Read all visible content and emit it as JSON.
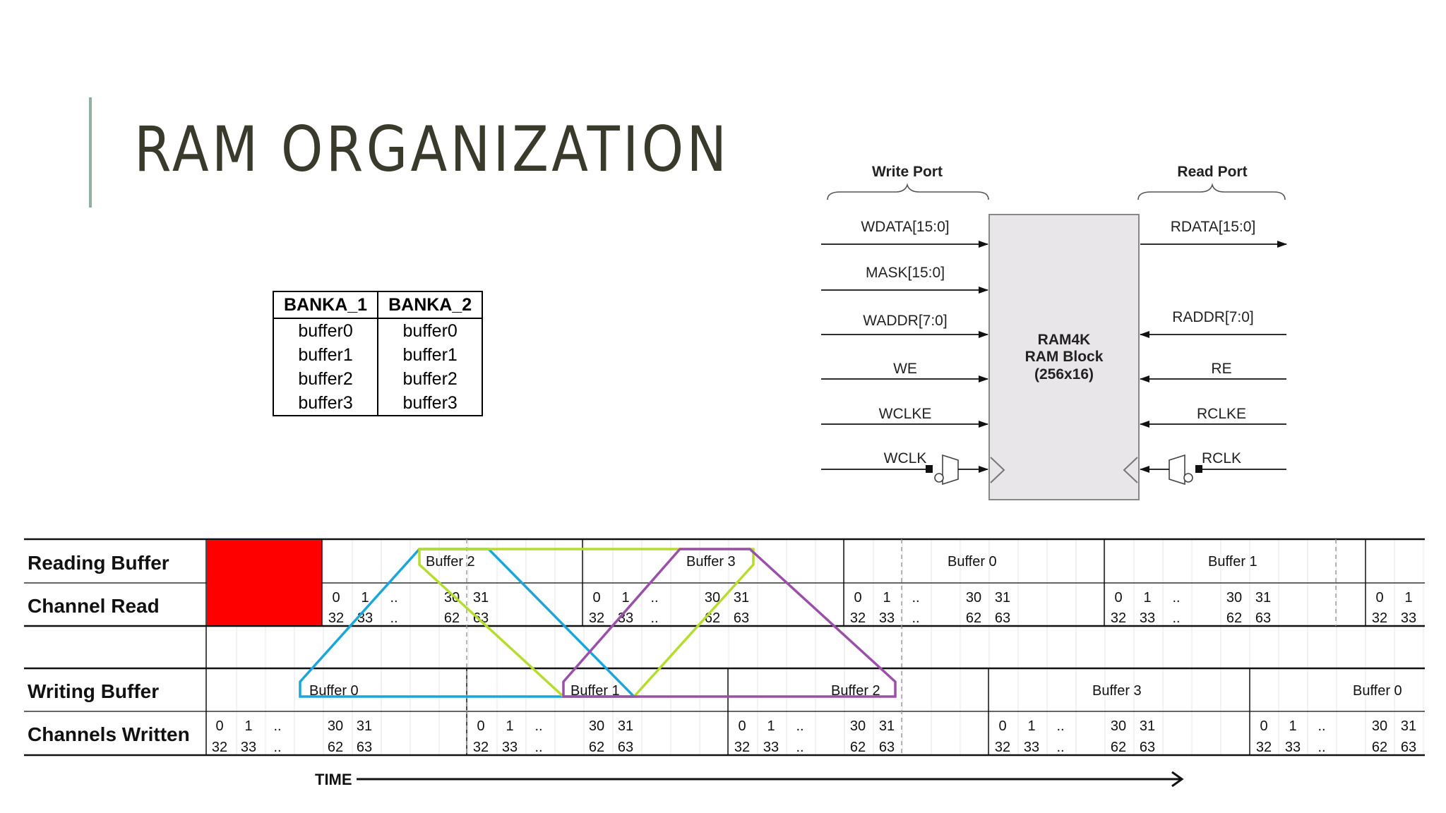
{
  "slide": {
    "title": "RAM ORGANIZATION"
  },
  "bank_table": {
    "headers": [
      "BANKA_1",
      "BANKA_2"
    ],
    "rows": [
      [
        "buffer0",
        "buffer0"
      ],
      [
        "buffer1",
        "buffer1"
      ],
      [
        "buffer2",
        "buffer2"
      ],
      [
        "buffer3",
        "buffer3"
      ]
    ]
  },
  "ram_block": {
    "write_port_label": "Write Port",
    "read_port_label": "Read Port",
    "name_lines": [
      "RAM4K",
      "RAM Block",
      "(256x16)"
    ],
    "write_signals": [
      "WDATA[15:0]",
      "MASK[15:0]",
      "WADDR[7:0]",
      "WE",
      "WCLKE",
      "WCLK"
    ],
    "read_signals": [
      "RDATA[15:0]",
      "RADDR[7:0]",
      "RE",
      "RCLKE",
      "RCLK"
    ]
  },
  "timeline": {
    "row_labels": [
      "Reading Buffer",
      "Channel Read",
      "Writing Buffer",
      "Channels Written"
    ],
    "reading_buffers": [
      "Buffer 2",
      "Buffer 3",
      "Buffer 0",
      "Buffer 1"
    ],
    "writing_buffers": [
      "Buffer 0",
      "Buffer 1",
      "Buffer 2",
      "Buffer 3",
      "Buffer 0"
    ],
    "channel_top": [
      "0",
      "1",
      "..",
      "30",
      "31"
    ],
    "channel_bottom": [
      "32",
      "33",
      "..",
      "62",
      "63"
    ],
    "time_label": "TIME",
    "colors": {
      "idle": "#ff0000",
      "cyan": "#1ba6d9",
      "lime": "#b6dc2e",
      "purple": "#9a4fa8"
    }
  }
}
